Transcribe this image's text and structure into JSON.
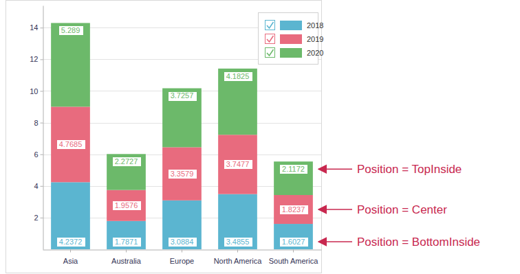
{
  "chart_data": {
    "type": "bar",
    "stacked": true,
    "data_labels": true,
    "grid": true,
    "legend": "top-right",
    "categories": [
      "Asia",
      "Australia",
      "Europe",
      "North America",
      "South America"
    ],
    "series": [
      {
        "name": "2018",
        "color": "#5bb5d0",
        "values": [
          4.2372,
          1.7871,
          3.0884,
          3.4855,
          1.6027
        ]
      },
      {
        "name": "2019",
        "color": "#e86b7e",
        "values": [
          4.7685,
          1.9576,
          3.3579,
          3.7477,
          1.8237
        ]
      },
      {
        "name": "2020",
        "color": "#6cb96a",
        "values": [
          5.289,
          2.2727,
          3.7257,
          4.1825,
          2.1172
        ]
      }
    ],
    "annotations": [
      "Position = BottomInside",
      "Position = Center",
      "Position = TopInside"
    ],
    "ylim": [
      0,
      15.4
    ],
    "yticks": [
      2,
      4,
      6,
      8,
      10,
      12,
      14
    ]
  }
}
